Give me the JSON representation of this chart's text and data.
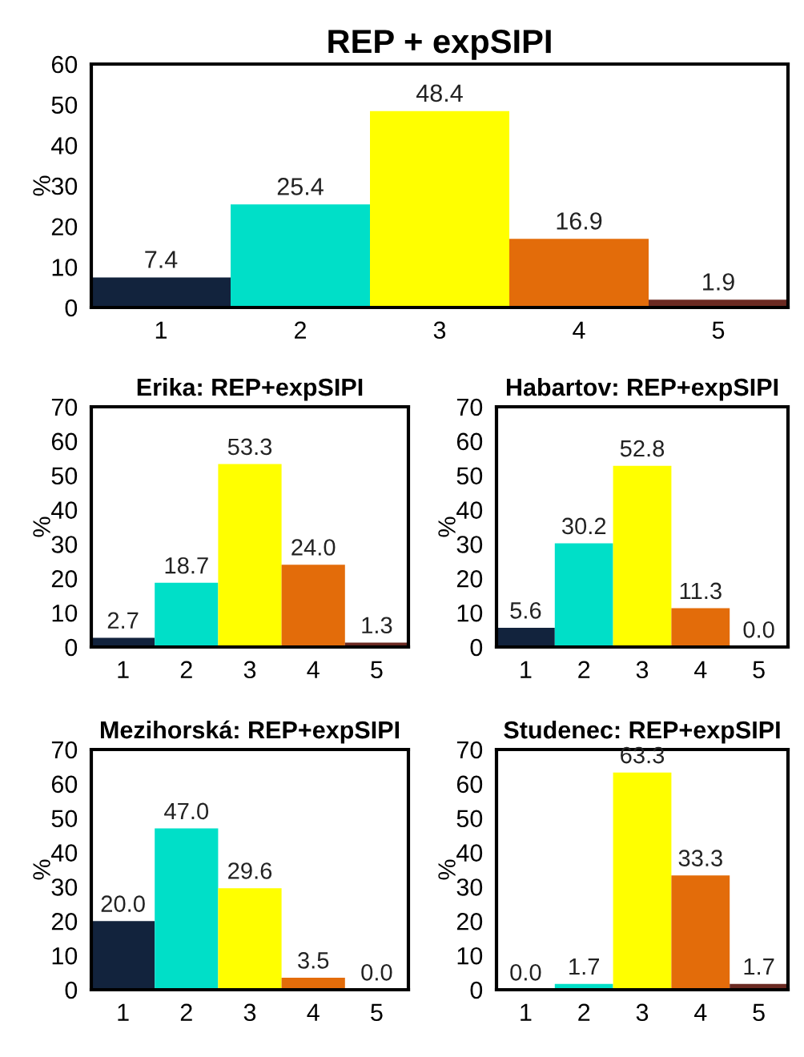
{
  "chart_data": [
    {
      "type": "bar",
      "title": "REP + expSIPI",
      "ylabel": "%",
      "categories": [
        "1",
        "2",
        "3",
        "4",
        "5"
      ],
      "values": [
        7.4,
        25.4,
        48.4,
        16.9,
        1.9
      ],
      "colors": [
        "#12233d",
        "#00dfc8",
        "#ffff00",
        "#e36c0a",
        "#6b2a22"
      ],
      "ylim": [
        0,
        60
      ],
      "yticks": [
        0,
        10,
        20,
        30,
        40,
        50,
        60
      ],
      "data_labels": true
    },
    {
      "type": "bar",
      "title": "Erika: REP+expSIPI",
      "ylabel": "%",
      "categories": [
        "1",
        "2",
        "3",
        "4",
        "5"
      ],
      "values": [
        2.7,
        18.7,
        53.3,
        24.0,
        1.3
      ],
      "value_labels": [
        "2.7",
        "18.7",
        "53.3",
        "24.0",
        "1.3"
      ],
      "colors": [
        "#12233d",
        "#00dfc8",
        "#ffff00",
        "#e36c0a",
        "#6b2a22"
      ],
      "ylim": [
        0,
        70
      ],
      "yticks": [
        0,
        10,
        20,
        30,
        40,
        50,
        60,
        70
      ]
    },
    {
      "type": "bar",
      "title": "Habartov: REP+expSIPI",
      "ylabel": "%",
      "categories": [
        "1",
        "2",
        "3",
        "4",
        "5"
      ],
      "values": [
        5.6,
        30.2,
        52.8,
        11.3,
        0.0
      ],
      "value_labels": [
        "5.6",
        "30.2",
        "52.8",
        "11.3",
        "0.0"
      ],
      "colors": [
        "#12233d",
        "#00dfc8",
        "#ffff00",
        "#e36c0a",
        "#6b2a22"
      ],
      "ylim": [
        0,
        70
      ],
      "yticks": [
        0,
        10,
        20,
        30,
        40,
        50,
        60,
        70
      ]
    },
    {
      "type": "bar",
      "title": "Mezihorská: REP+expSIPI",
      "ylabel": "%",
      "categories": [
        "1",
        "2",
        "3",
        "4",
        "5"
      ],
      "values": [
        20.0,
        47.0,
        29.6,
        3.5,
        0.0
      ],
      "value_labels": [
        "20.0",
        "47.0",
        "29.6",
        "3.5",
        "0.0"
      ],
      "colors": [
        "#12233d",
        "#00dfc8",
        "#ffff00",
        "#e36c0a",
        "#6b2a22"
      ],
      "ylim": [
        0,
        70
      ],
      "yticks": [
        0,
        10,
        20,
        30,
        40,
        50,
        60,
        70
      ]
    },
    {
      "type": "bar",
      "title": "Studenec: REP+expSIPI",
      "ylabel": "%",
      "categories": [
        "1",
        "2",
        "3",
        "4",
        "5"
      ],
      "values": [
        0.0,
        1.7,
        63.3,
        33.3,
        1.7
      ],
      "value_labels": [
        "0.0",
        "1.7",
        "63.3",
        "33.3",
        "1.7"
      ],
      "colors": [
        "#12233d",
        "#00dfc8",
        "#ffff00",
        "#e36c0a",
        "#6b2a22"
      ],
      "ylim": [
        0,
        70
      ],
      "yticks": [
        0,
        10,
        20,
        30,
        40,
        50,
        60,
        70
      ]
    }
  ]
}
